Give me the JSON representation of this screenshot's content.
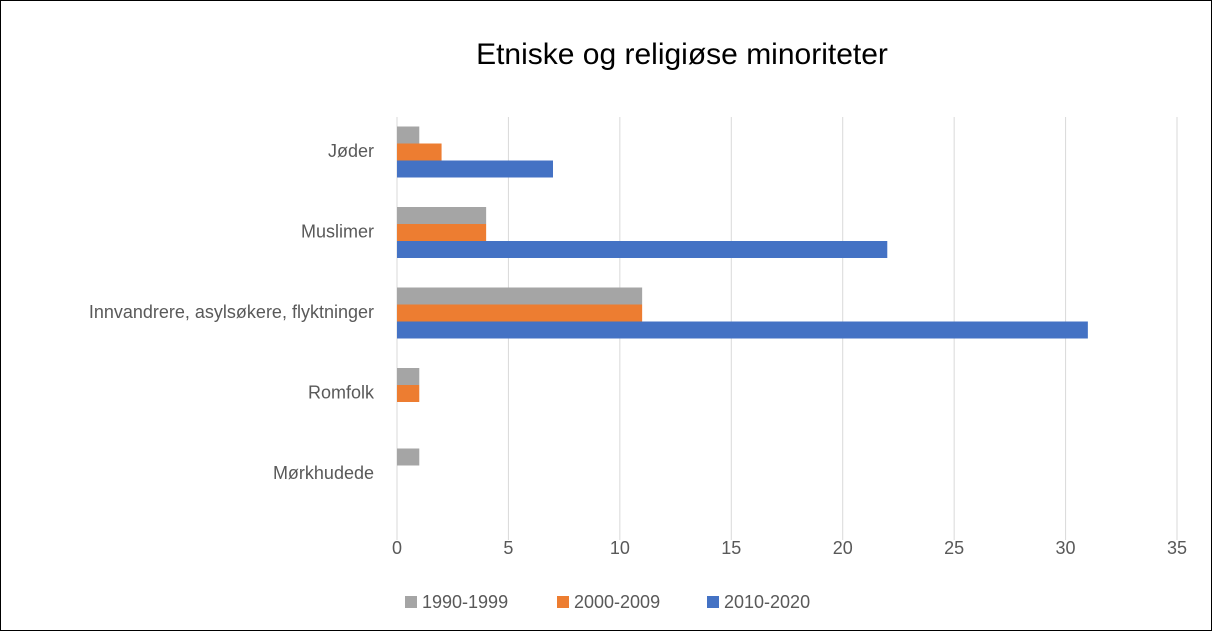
{
  "chart_data": {
    "type": "bar",
    "orientation": "horizontal",
    "title": "Etniske og religiøse minoriteter",
    "categories": [
      "Jøder",
      "Muslimer",
      "Innvandrere, asylsøkere, flyktninger",
      "Romfolk",
      "Mørkhudede"
    ],
    "series": [
      {
        "name": "1990-1999",
        "color": "#a5a5a5",
        "values": [
          1,
          4,
          11,
          1,
          1
        ]
      },
      {
        "name": "2000-2009",
        "color": "#ed7d31",
        "values": [
          2,
          4,
          11,
          1,
          0
        ]
      },
      {
        "name": "2010-2020",
        "color": "#4472c4",
        "values": [
          7,
          22,
          31,
          0,
          0
        ]
      }
    ],
    "xlim": [
      0,
      35
    ],
    "xticks": [
      0,
      5,
      10,
      15,
      20,
      25,
      30,
      35
    ],
    "grid": true,
    "legend": "bottom"
  }
}
